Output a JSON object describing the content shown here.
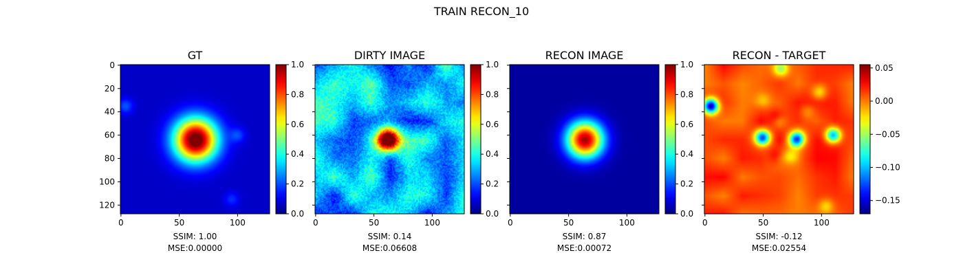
{
  "figure": {
    "title": "TRAIN RECON_10"
  },
  "chart_data": [
    {
      "type": "heatmap",
      "title": "GT",
      "image_size": [
        128,
        128
      ],
      "xticks": [
        0,
        50,
        100
      ],
      "yticks": [
        0,
        20,
        40,
        60,
        80,
        100,
        120
      ],
      "y_tick_labels_shown": true,
      "colormap": "jet",
      "colorbar": {
        "range": [
          0.0,
          1.0
        ],
        "ticks": [
          0.0,
          0.2,
          0.4,
          0.6,
          0.8,
          1.0
        ],
        "labels": [
          "0.0",
          "0.2",
          "0.4",
          "0.6",
          "0.8",
          "1.0"
        ]
      },
      "metrics": {
        "ssim_label": "SSIM: 1.00",
        "mse_label": "MSE:0.00000"
      },
      "content": {
        "background": 0.07,
        "peak": [
          64,
          64
        ],
        "peak_value": 1.0,
        "spread": 13,
        "blobs": [
          [
            4,
            35,
            0.14
          ],
          [
            100,
            60,
            0.12
          ],
          [
            95,
            115,
            0.1
          ]
        ]
      }
    },
    {
      "type": "heatmap",
      "title": "DIRTY IMAGE",
      "image_size": [
        128,
        128
      ],
      "xticks": [
        0,
        50,
        100
      ],
      "yticks": [
        0,
        20,
        40,
        60,
        80,
        100,
        120
      ],
      "y_tick_labels_shown": false,
      "colormap": "jet",
      "colorbar": {
        "range": [
          0.0,
          1.0
        ],
        "ticks": [
          0.0,
          0.2,
          0.4,
          0.6,
          0.8,
          1.0
        ],
        "labels": [
          "0.0",
          "0.2",
          "0.4",
          "0.6",
          "0.8",
          "1.0"
        ]
      },
      "metrics": {
        "ssim_label": "SSIM: 0.14",
        "mse_label": "MSE:0.06608"
      },
      "content": {
        "background": 0.3,
        "peak": [
          62,
          64
        ],
        "peak_value": 0.88,
        "spread": 7,
        "noise": 0.12
      }
    },
    {
      "type": "heatmap",
      "title": "RECON IMAGE",
      "image_size": [
        128,
        128
      ],
      "xticks": [
        0,
        50,
        100
      ],
      "yticks": [
        0,
        20,
        40,
        60,
        80,
        100,
        120
      ],
      "y_tick_labels_shown": false,
      "colormap": "jet",
      "colorbar": {
        "range": [
          0.0,
          1.0
        ],
        "ticks": [
          0.0,
          0.2,
          0.4,
          0.6,
          0.8,
          1.0
        ],
        "labels": [
          "0.0",
          "0.2",
          "0.4",
          "0.6",
          "0.8",
          "1.0"
        ]
      },
      "metrics": {
        "ssim_label": "SSIM: 0.87",
        "mse_label": "MSE:0.00072"
      },
      "content": {
        "background": 0.03,
        "peak": [
          64,
          64
        ],
        "peak_value": 0.93,
        "spread": 11
      }
    },
    {
      "type": "heatmap",
      "title": "RECON - TARGET",
      "image_size": [
        128,
        128
      ],
      "xticks": [
        0,
        50,
        100
      ],
      "yticks": [
        0,
        20,
        40,
        60,
        80,
        100,
        120
      ],
      "y_tick_labels_shown": false,
      "colormap": "jet",
      "colorbar": {
        "range": [
          -0.17,
          0.055
        ],
        "ticks": [
          0.05,
          0.0,
          -0.05,
          -0.1,
          -0.15
        ],
        "labels": [
          "0.05",
          "0.00",
          "−0.05",
          "−0.10",
          "−0.15"
        ]
      },
      "metrics": {
        "ssim_label": "SSIM: -0.12",
        "mse_label": "MSE:0.02554"
      },
      "content": {
        "background": 0.012,
        "blobs": [
          [
            5,
            35,
            -0.17
          ],
          [
            110,
            60,
            -0.12
          ],
          [
            50,
            62,
            -0.1
          ],
          [
            78,
            64,
            -0.1
          ],
          [
            63,
            47,
            -0.04
          ],
          [
            63,
            78,
            -0.03
          ],
          [
            62,
            78,
            0.045
          ],
          [
            62,
            45,
            0.04
          ],
          [
            48,
            62,
            -0.04
          ],
          [
            80,
            62,
            -0.04
          ],
          [
            65,
            3,
            -0.06
          ],
          [
            98,
            23,
            -0.04
          ],
          [
            104,
            121,
            -0.03
          ],
          [
            50,
            30,
            -0.02
          ],
          [
            88,
            40,
            -0.02
          ],
          [
            74,
            78,
            -0.03
          ]
        ]
      }
    }
  ]
}
